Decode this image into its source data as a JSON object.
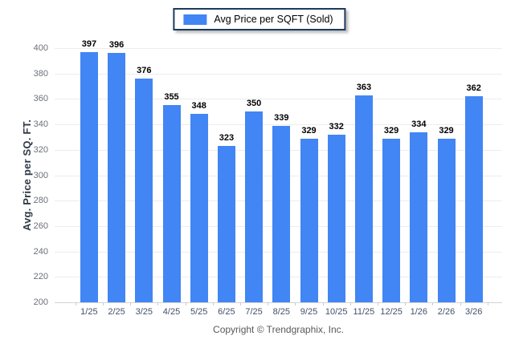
{
  "legend": {
    "label": "Avg Price per SQFT (Sold)",
    "swatch_color": "#4285f4"
  },
  "y_axis": {
    "label": "Avg. Price per SQ. FT."
  },
  "footer": {
    "copyright": "Copyright © Trendgraphix, Inc."
  },
  "chart_data": {
    "type": "bar",
    "title": "",
    "series_name": "Avg Price per SQFT (Sold)",
    "categories": [
      "1/25",
      "2/25",
      "3/25",
      "4/25",
      "5/25",
      "6/25",
      "7/25",
      "8/25",
      "9/25",
      "10/25",
      "11/25",
      "12/25",
      "1/26",
      "2/26",
      "3/26"
    ],
    "values": [
      397,
      396,
      376,
      355,
      348,
      323,
      350,
      339,
      329,
      332,
      363,
      329,
      334,
      329,
      362
    ],
    "xlabel": "",
    "ylabel": "Avg. Price per SQ. FT.",
    "ylim": [
      200,
      400
    ],
    "ytick_step": 20,
    "bar_color": "#4285f4",
    "grid": true,
    "data_labels": true,
    "legend_position": "top-center"
  }
}
